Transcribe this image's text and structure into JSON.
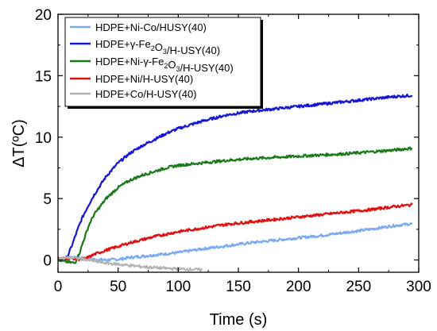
{
  "chart_data": {
    "type": "line",
    "xlabel": "Time (s)",
    "ylabel": "ΔT(ºC)",
    "xlim": [
      0,
      300
    ],
    "ylim": [
      -1,
      20
    ],
    "x_ticks": [
      "0",
      "50",
      "100",
      "150",
      "200",
      "250",
      "300"
    ],
    "y_ticks": [
      "0",
      "5",
      "10",
      "15",
      "20"
    ],
    "grid": false,
    "legend_position": "top-left",
    "series": [
      {
        "name": "HDPE+Ni-Co/HUSY(40)",
        "color": "#7aaaf0",
        "x": [
          0,
          10,
          20,
          30,
          40,
          50,
          60,
          80,
          100,
          120,
          140,
          160,
          180,
          200,
          220,
          240,
          260,
          280,
          295
        ],
        "y": [
          0.1,
          0.2,
          0.15,
          0.05,
          0.0,
          0.05,
          0.2,
          0.4,
          0.6,
          0.9,
          1.15,
          1.4,
          1.6,
          1.8,
          2.0,
          2.25,
          2.5,
          2.8,
          2.95
        ]
      },
      {
        "name": "HDPE+γ-Fe2O3/H-USY(40)",
        "color": "#1515d4",
        "x": [
          0,
          5,
          8,
          12,
          16,
          20,
          25,
          30,
          40,
          50,
          60,
          70,
          80,
          90,
          100,
          120,
          140,
          160,
          180,
          200,
          220,
          240,
          260,
          280,
          295
        ],
        "y": [
          0.0,
          -0.05,
          0.3,
          1.3,
          2.4,
          3.4,
          4.4,
          5.3,
          6.8,
          7.9,
          8.7,
          9.3,
          9.8,
          10.3,
          10.7,
          11.3,
          11.8,
          12.1,
          12.3,
          12.5,
          12.7,
          12.9,
          13.1,
          13.3,
          13.4
        ]
      },
      {
        "name": "HDPE+Ni-γ-Fe2O3/H-USY(40)",
        "color": "#1a7a1a",
        "x": [
          0,
          10,
          14,
          18,
          22,
          26,
          30,
          40,
          50,
          60,
          70,
          80,
          90,
          100,
          120,
          140,
          160,
          180,
          200,
          220,
          240,
          260,
          280,
          295
        ],
        "y": [
          0.0,
          -0.2,
          -0.25,
          0.6,
          1.8,
          2.9,
          3.7,
          5.0,
          5.9,
          6.5,
          6.9,
          7.2,
          7.5,
          7.7,
          7.9,
          8.1,
          8.25,
          8.35,
          8.45,
          8.55,
          8.65,
          8.8,
          8.95,
          9.1
        ]
      },
      {
        "name": "HDPE+Ni/H-USY(40)",
        "color": "#e01010",
        "x": [
          0,
          10,
          15,
          20,
          25,
          30,
          40,
          50,
          60,
          80,
          100,
          120,
          140,
          160,
          180,
          200,
          220,
          240,
          260,
          280,
          295
        ],
        "y": [
          0.1,
          0.15,
          0.1,
          0.05,
          0.2,
          0.45,
          0.8,
          1.1,
          1.4,
          1.9,
          2.3,
          2.6,
          2.9,
          3.1,
          3.3,
          3.5,
          3.7,
          3.9,
          4.1,
          4.35,
          4.5
        ]
      },
      {
        "name": "HDPE+Co/H-USY(40)",
        "color": "#b4b4b4",
        "x": [
          0,
          10,
          20,
          30,
          40,
          50,
          60,
          70,
          80,
          90,
          100,
          110,
          120
        ],
        "y": [
          0.1,
          0.2,
          0.1,
          -0.1,
          -0.25,
          -0.35,
          -0.45,
          -0.55,
          -0.62,
          -0.68,
          -0.72,
          -0.76,
          -0.8
        ]
      }
    ]
  }
}
